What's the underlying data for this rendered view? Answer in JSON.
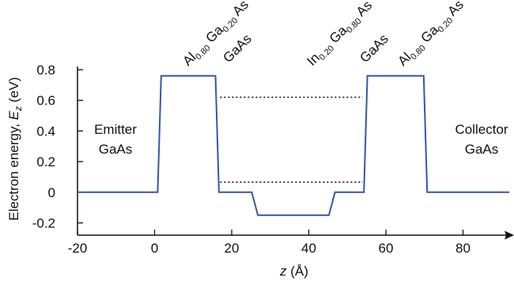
{
  "chart_data": {
    "type": "line",
    "title": "",
    "xlabel_var": "z",
    "xlabel_unit": "(Å)",
    "ylabel_text": "Electron energy, ",
    "ylabel_var": "E",
    "ylabel_sub": "z",
    "ylabel_unit": " (eV)",
    "xlim": [
      -20,
      92
    ],
    "ylim": [
      -0.28,
      0.8
    ],
    "x_ticks": [
      -20,
      0,
      20,
      40,
      60,
      80
    ],
    "x_tick_labels": [
      "-20",
      "0",
      "20",
      "40",
      "60",
      "80"
    ],
    "y_ticks": [
      0.8,
      0.6,
      0.4,
      0.2,
      0,
      -0.2
    ],
    "y_tick_labels": [
      "0.8",
      "0.6",
      "0.4",
      "0.2",
      "0",
      "-0.2"
    ],
    "grid": false,
    "line_color": "#3a55a4",
    "dotted_color": "#333333",
    "series": [
      {
        "x": [
          -20,
          0.8,
          1.7,
          15.8,
          16.7,
          25.2,
          26.8,
          45.2,
          46.8,
          54.3,
          55.2,
          69.8,
          70.7,
          92
        ],
        "values": [
          0,
          0,
          0.76,
          0.76,
          0,
          0,
          -0.15,
          -0.15,
          0,
          0,
          0.76,
          0.76,
          0,
          0
        ]
      }
    ],
    "levels": [
      {
        "y": 0.62,
        "x_start": 17,
        "x_end": 54
      },
      {
        "y": 0.066,
        "x_start": 17,
        "x_end": 54
      }
    ],
    "region_labels": [
      {
        "lines": [
          "Emitter",
          "GaAs"
        ]
      },
      {
        "lines": [
          "Collector",
          "GaAs"
        ]
      }
    ],
    "layer_labels": [
      {
        "parts": [
          {
            "t": "Al",
            "s": false
          },
          {
            "t": "0.80",
            "s": true
          },
          {
            "t": " Ga",
            "s": false
          },
          {
            "t": "0.20",
            "s": true
          },
          {
            "t": " As",
            "s": false
          }
        ]
      },
      {
        "parts": [
          {
            "t": "GaAs",
            "s": false
          }
        ]
      },
      {
        "parts": [
          {
            "t": "In",
            "s": false
          },
          {
            "t": "0.20",
            "s": true
          },
          {
            "t": " Ga",
            "s": false
          },
          {
            "t": "0.80",
            "s": true
          },
          {
            "t": " As",
            "s": false
          }
        ]
      },
      {
        "parts": [
          {
            "t": "GaAs",
            "s": false
          }
        ]
      },
      {
        "parts": [
          {
            "t": "Al",
            "s": false
          },
          {
            "t": "0.80",
            "s": true
          },
          {
            "t": " Ga",
            "s": false
          },
          {
            "t": "0.20",
            "s": true
          },
          {
            "t": " As",
            "s": false
          }
        ]
      }
    ]
  }
}
